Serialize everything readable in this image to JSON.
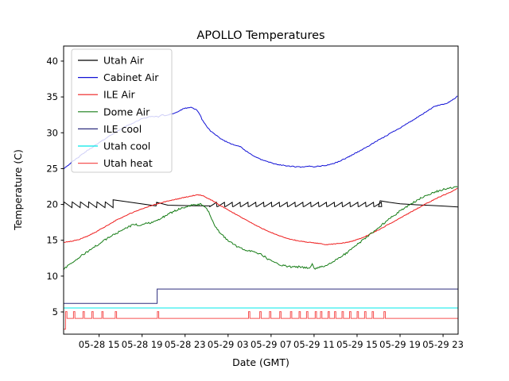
{
  "title": "APOLLO Temperatures",
  "chart_data": {
    "type": "line",
    "title": "APOLLO Temperatures",
    "xlabel": "Date (GMT)",
    "ylabel": "Temperature (C)",
    "x_unit_note": "hours after 05-28 00:00 GMT",
    "xlim": [
      11.7,
      48.4
    ],
    "ylim": [
      1.9,
      42.1
    ],
    "yticks": [
      5,
      10,
      15,
      20,
      25,
      30,
      35,
      40
    ],
    "xticks": [
      {
        "t": 15,
        "label": "05-28 15"
      },
      {
        "t": 19,
        "label": "05-28 19"
      },
      {
        "t": 23,
        "label": "05-28 23"
      },
      {
        "t": 27,
        "label": "05-29 03"
      },
      {
        "t": 31,
        "label": "05-29 07"
      },
      {
        "t": 35,
        "label": "05-29 11"
      },
      {
        "t": 39,
        "label": "05-29 15"
      },
      {
        "t": 43,
        "label": "05-29 19"
      },
      {
        "t": 47,
        "label": "05-29 23"
      }
    ],
    "grid": false,
    "legend_position": "upper left",
    "series": [
      {
        "name": "Utah Air",
        "color": "#000000",
        "type": "composite",
        "noise": 0,
        "parts": [
          {
            "kind": "teeth",
            "style": "decay",
            "t0": 11.7,
            "t1": 16.3,
            "period": 0.77,
            "lo": 19.55,
            "hi": 20.35
          },
          {
            "kind": "pts",
            "pts": [
              [
                16.3,
                20.65
              ],
              [
                20.3,
                19.8
              ]
            ]
          },
          {
            "kind": "pts",
            "pts": [
              [
                20.35,
                20.3
              ],
              [
                21.4,
                19.9
              ],
              [
                22.5,
                19.85
              ],
              [
                24.0,
                19.82
              ],
              [
                25.3,
                19.8
              ]
            ]
          },
          {
            "kind": "teeth",
            "style": "rise",
            "t0": 25.3,
            "t1": 41.0,
            "period": 0.73,
            "lo": 19.7,
            "hi": 20.3
          },
          {
            "kind": "pts",
            "pts": [
              [
                41.0,
                19.7
              ],
              [
                41.15,
                20.5
              ],
              [
                42.0,
                20.3
              ],
              [
                43.0,
                20.1
              ],
              [
                44.5,
                19.95
              ],
              [
                46.0,
                19.85
              ],
              [
                47.2,
                19.75
              ],
              [
                48.4,
                19.65
              ]
            ]
          }
        ]
      },
      {
        "name": "Cabinet Air",
        "color": "#1212d6",
        "type": "points",
        "noise": 0.06,
        "points": [
          [
            11.7,
            25.0
          ],
          [
            12.3,
            25.7
          ],
          [
            13.0,
            26.5
          ],
          [
            13.7,
            27.3
          ],
          [
            14.5,
            28.1
          ],
          [
            15.3,
            28.9
          ],
          [
            16.0,
            29.6
          ],
          [
            16.8,
            30.3
          ],
          [
            17.5,
            30.9
          ],
          [
            18.2,
            31.4
          ],
          [
            18.9,
            31.9
          ],
          [
            19.6,
            32.2
          ],
          [
            20.1,
            32.3
          ],
          [
            20.5,
            32.2
          ],
          [
            20.8,
            32.5
          ],
          [
            21.2,
            32.4
          ],
          [
            21.6,
            32.6
          ],
          [
            22.0,
            32.7
          ],
          [
            22.4,
            33.0
          ],
          [
            22.8,
            33.3
          ],
          [
            23.2,
            33.5
          ],
          [
            23.6,
            33.5
          ],
          [
            23.9,
            33.3
          ],
          [
            24.1,
            33.2
          ],
          [
            24.35,
            32.6
          ],
          [
            24.6,
            31.8
          ],
          [
            25.0,
            30.9
          ],
          [
            25.4,
            30.2
          ],
          [
            25.9,
            29.6
          ],
          [
            26.4,
            29.1
          ],
          [
            26.9,
            28.7
          ],
          [
            27.4,
            28.4
          ],
          [
            27.9,
            28.2
          ],
          [
            28.2,
            28.0
          ],
          [
            28.6,
            27.5
          ],
          [
            29.0,
            27.1
          ],
          [
            29.5,
            26.7
          ],
          [
            30.0,
            26.3
          ],
          [
            30.6,
            26.0
          ],
          [
            31.2,
            25.7
          ],
          [
            31.9,
            25.5
          ],
          [
            32.6,
            25.35
          ],
          [
            33.3,
            25.25
          ],
          [
            34.0,
            25.2
          ],
          [
            34.6,
            25.35
          ],
          [
            35.0,
            25.25
          ],
          [
            35.4,
            25.35
          ],
          [
            35.9,
            25.4
          ],
          [
            36.4,
            25.55
          ],
          [
            36.9,
            25.75
          ],
          [
            37.4,
            26.05
          ],
          [
            37.9,
            26.4
          ],
          [
            38.4,
            26.8
          ],
          [
            38.9,
            27.2
          ],
          [
            39.4,
            27.6
          ],
          [
            39.9,
            28.0
          ],
          [
            40.4,
            28.45
          ],
          [
            40.9,
            28.9
          ],
          [
            41.4,
            29.3
          ],
          [
            41.9,
            29.75
          ],
          [
            42.4,
            30.2
          ],
          [
            42.9,
            30.6
          ],
          [
            43.4,
            31.05
          ],
          [
            43.9,
            31.5
          ],
          [
            44.4,
            31.95
          ],
          [
            44.9,
            32.4
          ],
          [
            45.4,
            32.9
          ],
          [
            45.8,
            33.3
          ],
          [
            46.2,
            33.65
          ],
          [
            46.6,
            33.85
          ],
          [
            47.0,
            33.95
          ],
          [
            47.3,
            34.1
          ],
          [
            47.7,
            34.4
          ],
          [
            48.0,
            34.7
          ],
          [
            48.4,
            35.2
          ]
        ]
      },
      {
        "name": "ILE Air",
        "color": "#ee1c1c",
        "type": "points",
        "noise": 0.05,
        "points": [
          [
            11.7,
            14.7
          ],
          [
            12.4,
            14.85
          ],
          [
            13.1,
            15.1
          ],
          [
            13.8,
            15.5
          ],
          [
            14.5,
            16.0
          ],
          [
            15.2,
            16.6
          ],
          [
            15.9,
            17.2
          ],
          [
            16.6,
            17.8
          ],
          [
            17.3,
            18.3
          ],
          [
            18.0,
            18.8
          ],
          [
            18.7,
            19.2
          ],
          [
            19.4,
            19.6
          ],
          [
            20.0,
            19.9
          ],
          [
            20.6,
            20.15
          ],
          [
            21.2,
            20.4
          ],
          [
            21.8,
            20.6
          ],
          [
            22.4,
            20.8
          ],
          [
            23.0,
            21.0
          ],
          [
            23.5,
            21.15
          ],
          [
            24.0,
            21.3
          ],
          [
            24.4,
            21.3
          ],
          [
            24.8,
            21.1
          ],
          [
            25.2,
            20.8
          ],
          [
            25.7,
            20.4
          ],
          [
            26.2,
            19.9
          ],
          [
            26.8,
            19.4
          ],
          [
            27.4,
            18.9
          ],
          [
            28.0,
            18.4
          ],
          [
            28.6,
            17.9
          ],
          [
            29.2,
            17.4
          ],
          [
            29.8,
            16.9
          ],
          [
            30.4,
            16.5
          ],
          [
            31.0,
            16.1
          ],
          [
            31.6,
            15.7
          ],
          [
            32.2,
            15.4
          ],
          [
            32.8,
            15.15
          ],
          [
            33.4,
            14.95
          ],
          [
            34.0,
            14.8
          ],
          [
            34.6,
            14.7
          ],
          [
            35.2,
            14.6
          ],
          [
            35.8,
            14.5
          ],
          [
            36.2,
            14.35
          ],
          [
            36.5,
            14.45
          ],
          [
            37.0,
            14.5
          ],
          [
            37.6,
            14.6
          ],
          [
            38.2,
            14.75
          ],
          [
            38.8,
            15.0
          ],
          [
            39.4,
            15.3
          ],
          [
            40.0,
            15.7
          ],
          [
            40.6,
            16.15
          ],
          [
            41.2,
            16.6
          ],
          [
            41.8,
            17.1
          ],
          [
            42.4,
            17.6
          ],
          [
            43.0,
            18.1
          ],
          [
            43.6,
            18.6
          ],
          [
            44.2,
            19.1
          ],
          [
            44.8,
            19.6
          ],
          [
            45.4,
            20.1
          ],
          [
            46.0,
            20.55
          ],
          [
            46.6,
            21.0
          ],
          [
            47.2,
            21.4
          ],
          [
            47.8,
            21.8
          ],
          [
            48.4,
            22.3
          ]
        ]
      },
      {
        "name": "Dome Air",
        "color": "#177d17",
        "type": "points",
        "noise": 0.13,
        "points": [
          [
            11.7,
            11.0
          ],
          [
            12.2,
            11.5
          ],
          [
            12.8,
            12.2
          ],
          [
            13.4,
            12.9
          ],
          [
            14.0,
            13.5
          ],
          [
            14.6,
            14.1
          ],
          [
            15.2,
            14.7
          ],
          [
            15.8,
            15.3
          ],
          [
            16.4,
            15.8
          ],
          [
            17.0,
            16.3
          ],
          [
            17.6,
            16.8
          ],
          [
            18.1,
            17.1
          ],
          [
            18.45,
            17.25
          ],
          [
            18.7,
            17.0
          ],
          [
            19.0,
            17.2
          ],
          [
            19.4,
            17.35
          ],
          [
            19.9,
            17.5
          ],
          [
            20.4,
            17.8
          ],
          [
            20.9,
            18.2
          ],
          [
            21.4,
            18.6
          ],
          [
            21.9,
            19.0
          ],
          [
            22.4,
            19.35
          ],
          [
            22.9,
            19.6
          ],
          [
            23.4,
            19.8
          ],
          [
            23.9,
            19.95
          ],
          [
            24.4,
            20.0
          ],
          [
            24.7,
            19.85
          ],
          [
            24.95,
            19.6
          ],
          [
            25.2,
            18.9
          ],
          [
            25.5,
            17.8
          ],
          [
            25.8,
            16.9
          ],
          [
            26.2,
            16.1
          ],
          [
            26.6,
            15.5
          ],
          [
            27.0,
            15.0
          ],
          [
            27.4,
            14.55
          ],
          [
            27.8,
            14.15
          ],
          [
            28.2,
            13.85
          ],
          [
            28.6,
            13.65
          ],
          [
            29.0,
            13.55
          ],
          [
            29.4,
            13.45
          ],
          [
            29.8,
            13.2
          ],
          [
            30.2,
            12.9
          ],
          [
            30.6,
            12.5
          ],
          [
            31.0,
            12.15
          ],
          [
            31.4,
            11.85
          ],
          [
            31.8,
            11.6
          ],
          [
            32.2,
            11.45
          ],
          [
            32.7,
            11.3
          ],
          [
            33.2,
            11.25
          ],
          [
            33.7,
            11.3
          ],
          [
            34.2,
            11.2
          ],
          [
            34.6,
            11.1
          ],
          [
            34.85,
            11.75
          ],
          [
            35.05,
            10.85
          ],
          [
            35.3,
            11.15
          ],
          [
            35.7,
            11.3
          ],
          [
            36.1,
            11.5
          ],
          [
            36.5,
            11.75
          ],
          [
            36.9,
            12.1
          ],
          [
            37.3,
            12.5
          ],
          [
            37.7,
            12.9
          ],
          [
            38.1,
            13.3
          ],
          [
            38.6,
            13.9
          ],
          [
            39.1,
            14.5
          ],
          [
            39.6,
            15.1
          ],
          [
            40.1,
            15.7
          ],
          [
            40.6,
            16.3
          ],
          [
            41.1,
            16.9
          ],
          [
            41.6,
            17.5
          ],
          [
            42.1,
            18.1
          ],
          [
            42.6,
            18.65
          ],
          [
            43.1,
            19.2
          ],
          [
            43.6,
            19.7
          ],
          [
            44.1,
            20.15
          ],
          [
            44.6,
            20.6
          ],
          [
            45.1,
            21.0
          ],
          [
            45.6,
            21.35
          ],
          [
            46.1,
            21.65
          ],
          [
            46.6,
            21.9
          ],
          [
            47.1,
            22.1
          ],
          [
            47.6,
            22.25
          ],
          [
            48.0,
            22.35
          ],
          [
            48.4,
            22.55
          ]
        ]
      },
      {
        "name": "ILE cool",
        "color": "#2e2e7e",
        "type": "points",
        "noise": 0,
        "points": [
          [
            11.7,
            6.2
          ],
          [
            20.4,
            6.2
          ],
          [
            20.4,
            8.2
          ],
          [
            48.4,
            8.2
          ]
        ]
      },
      {
        "name": "Utah cool",
        "color": "#00e8e8",
        "type": "points",
        "noise": 0,
        "points": [
          [
            11.7,
            5.55
          ],
          [
            48.4,
            5.55
          ]
        ]
      },
      {
        "name": "Utah heat",
        "color": "#f65252",
        "type": "pulses",
        "noise": 0,
        "baseline": 4.1,
        "pulse_high": 5.05,
        "pulse_width": 0.13,
        "start_level": 2.6,
        "pulse_times": [
          11.88,
          12.62,
          13.5,
          14.32,
          15.25,
          16.5,
          20.42,
          28.9,
          29.95,
          30.85,
          31.8,
          32.8,
          33.6,
          34.3,
          35.1,
          35.6,
          36.3,
          36.9,
          37.6,
          38.3,
          39.0,
          39.7,
          40.4,
          41.5
        ],
        "end_t": 48.4
      }
    ]
  }
}
